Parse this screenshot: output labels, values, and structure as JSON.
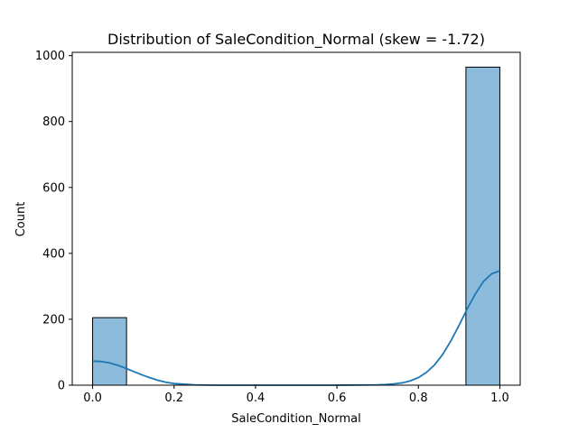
{
  "chart_data": {
    "type": "bar",
    "title": "Distribution of SaleCondition_Normal (skew = -1.72)",
    "xlabel": "SaleCondition_Normal",
    "ylabel": "Count",
    "xlim": [
      -0.05,
      1.05
    ],
    "ylim": [
      0,
      1010
    ],
    "x_ticks": [
      0.0,
      0.2,
      0.4,
      0.6,
      0.8,
      1.0
    ],
    "x_tick_labels": [
      "0.0",
      "0.2",
      "0.4",
      "0.6",
      "0.8",
      "1.0"
    ],
    "y_ticks": [
      0,
      200,
      400,
      600,
      800,
      1000
    ],
    "y_tick_labels": [
      "0",
      "200",
      "400",
      "600",
      "800",
      "1000"
    ],
    "bins": [
      {
        "x0": 0.0,
        "x1": 0.0833,
        "count": 205
      },
      {
        "x0": 0.9167,
        "x1": 1.0,
        "count": 965
      }
    ],
    "kde": {
      "x": [
        0.0,
        0.02,
        0.04,
        0.06,
        0.08,
        0.1,
        0.12,
        0.14,
        0.16,
        0.18,
        0.2,
        0.25,
        0.3,
        0.4,
        0.5,
        0.6,
        0.7,
        0.72,
        0.74,
        0.76,
        0.78,
        0.8,
        0.82,
        0.84,
        0.86,
        0.88,
        0.9,
        0.92,
        0.94,
        0.96,
        0.98,
        1.0
      ],
      "y": [
        73,
        72,
        68,
        61,
        52,
        42,
        32,
        23,
        15,
        9,
        5,
        1,
        0,
        0,
        0,
        0,
        1,
        2,
        4,
        7,
        13,
        23,
        39,
        62,
        94,
        135,
        182,
        232,
        277,
        315,
        338,
        347
      ]
    },
    "bar_color": "#8dbbdb",
    "bar_edge_color": "#000000",
    "kde_color": "#1f77b4",
    "grid": false
  }
}
